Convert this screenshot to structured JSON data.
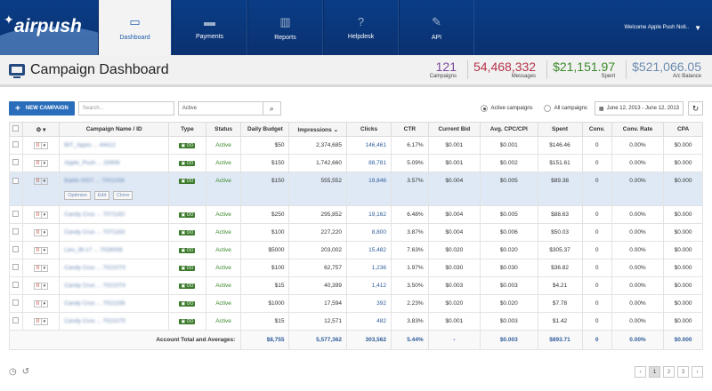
{
  "logo": {
    "text": "airpush"
  },
  "nav": {
    "tabs": [
      {
        "label": "Dashboard"
      },
      {
        "label": "Payments"
      },
      {
        "label": "Reports"
      },
      {
        "label": "Helpdesk"
      },
      {
        "label": "API"
      }
    ],
    "welcome": "Welcome Apple Push Noti.."
  },
  "header": {
    "title": "Campaign Dashboard",
    "stats": [
      {
        "value": "121",
        "label": "Campaigns",
        "color": "#7b4a9c"
      },
      {
        "value": "54,468,332",
        "label": "Messages",
        "color": "#b5344a"
      },
      {
        "value": "$21,151.97",
        "label": "Spent",
        "color": "#3b8a2a"
      },
      {
        "value": "$521,066.05",
        "label": "A/c Balance",
        "color": "#6a8ab0"
      }
    ]
  },
  "toolbar": {
    "new_campaign": "NEW CAMPAIGN",
    "search_placeholder": "Search...",
    "status_value": "Active",
    "radio_active": "Active campaigns",
    "radio_all": "All campaigns",
    "date_range": "June 12, 2013 - June 12, 2013"
  },
  "table": {
    "columns": [
      "Campaign Name / ID",
      "Type",
      "Status",
      "Daily Budget",
      "Impressions",
      "Clicks",
      "CTR",
      "Current Bid",
      "Avg. CPC/CPI",
      "Spent",
      "Conv.",
      "Conv. Rate",
      "CPA"
    ],
    "rows": [
      {
        "name": "BIT_Appio ... 44412",
        "status": "Active",
        "budget": "$50",
        "impressions": "2,374,685",
        "clicks": "146,461",
        "ctr": "6.17%",
        "bid": "$0.001",
        "cpc": "$0.001",
        "spent": "$146.46",
        "conv": "0",
        "rate": "0.00%",
        "cpa": "$0.000"
      },
      {
        "name": "Apple_Push ... 33908",
        "status": "Active",
        "budget": "$150",
        "impressions": "1,742,660",
        "clicks": "88,781",
        "ctr": "5.09%",
        "bid": "$0.001",
        "cpc": "$0.002",
        "spent": "$151.61",
        "conv": "0",
        "rate": "0.00%",
        "cpa": "$0.000"
      },
      {
        "name": "Battle INST ... 7001008",
        "status": "Active",
        "budget": "$150",
        "impressions": "555,552",
        "clicks": "19,846",
        "ctr": "3.57%",
        "bid": "$0.004",
        "cpc": "$0.005",
        "spent": "$89.38",
        "conv": "0",
        "rate": "0.00%",
        "cpa": "$0.000",
        "selected": true
      },
      {
        "name": "Candy Crus ... 7071162",
        "status": "Active",
        "budget": "$250",
        "impressions": "295,852",
        "clicks": "19,162",
        "ctr": "6.48%",
        "bid": "$0.004",
        "cpc": "$0.005",
        "spent": "$88.63",
        "conv": "0",
        "rate": "0.00%",
        "cpa": "$0.000"
      },
      {
        "name": "Candy Crus ... 7071163",
        "status": "Active",
        "budget": "$100",
        "impressions": "227,220",
        "clicks": "8,800",
        "ctr": "3.87%",
        "bid": "$0.004",
        "cpc": "$0.006",
        "spent": "$50.03",
        "conv": "0",
        "rate": "0.00%",
        "cpa": "$0.000"
      },
      {
        "name": "Lies_IB-17 ... 7028058",
        "status": "Active",
        "budget": "$5000",
        "impressions": "203,002",
        "clicks": "15,482",
        "ctr": "7.63%",
        "bid": "$0.020",
        "cpc": "$0.020",
        "spent": "$305.37",
        "conv": "0",
        "rate": "0.00%",
        "cpa": "$0.000"
      },
      {
        "name": "Candy Crus ... 7021073",
        "status": "Active",
        "budget": "$100",
        "impressions": "62,757",
        "clicks": "1,236",
        "ctr": "1.97%",
        "bid": "$0.030",
        "cpc": "$0.030",
        "spent": "$36.82",
        "conv": "0",
        "rate": "0.00%",
        "cpa": "$0.000"
      },
      {
        "name": "Candy Crus ... 7021074",
        "status": "Active",
        "budget": "$15",
        "impressions": "40,399",
        "clicks": "1,412",
        "ctr": "3.50%",
        "bid": "$0.003",
        "cpc": "$0.003",
        "spent": "$4.21",
        "conv": "0",
        "rate": "0.00%",
        "cpa": "$0.000"
      },
      {
        "name": "Candy Crus ... 7021158",
        "status": "Active",
        "budget": "$1000",
        "impressions": "17,594",
        "clicks": "392",
        "ctr": "2.23%",
        "bid": "$0.020",
        "cpc": "$0.020",
        "spent": "$7.78",
        "conv": "0",
        "rate": "0.00%",
        "cpa": "$0.000"
      },
      {
        "name": "Candy Crus ... 7021075",
        "status": "Active",
        "budget": "$15",
        "impressions": "12,571",
        "clicks": "482",
        "ctr": "3.83%",
        "bid": "$0.001",
        "cpc": "$0.003",
        "spent": "$1.42",
        "conv": "0",
        "rate": "0.00%",
        "cpa": "$0.000"
      }
    ],
    "row_actions": [
      "Optimize",
      "Edit",
      "Clone"
    ],
    "totals": {
      "label": "Account Total and Averages:",
      "budget": "$8,755",
      "impressions": "5,577,362",
      "clicks": "303,562",
      "ctr": "5.44%",
      "bid": "-",
      "cpc": "$0.003",
      "spent": "$893.71",
      "conv": "0",
      "rate": "0.00%",
      "cpa": "$0.000"
    }
  },
  "pagination": {
    "pages": [
      "1",
      "2",
      "3"
    ],
    "current": "1"
  }
}
